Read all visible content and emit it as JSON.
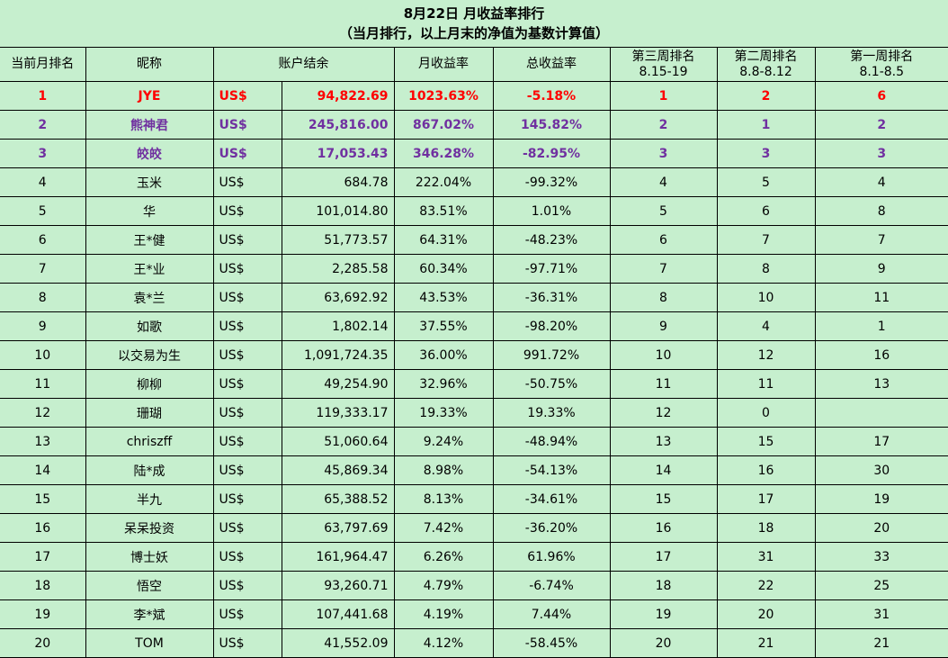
{
  "title": {
    "line1": "8月22日 月收益率排行",
    "line2": "（当月排行，以上月末的净值为基数计算值）"
  },
  "columns": [
    "当前月排名",
    "昵称",
    "账户结余",
    "月收益率",
    "总收益率",
    "第三周排名",
    "第二周排名",
    "第一周排名"
  ],
  "week_ranges": {
    "week3": "8.15-19",
    "week2": "8.8-8.12",
    "week1": "8.1-8.5"
  },
  "currency": "US$",
  "colors": {
    "background": "#c6efce",
    "red": "#ff0000",
    "purple": "#7030a0"
  },
  "rows": [
    {
      "rank": "1",
      "name": "JYE",
      "balance": "94,822.69",
      "monthly": "1023.63%",
      "total": "-5.18%",
      "w3": "1",
      "w2": "2",
      "w1": "6",
      "style": "red"
    },
    {
      "rank": "2",
      "name": "熊神君",
      "balance": "245,816.00",
      "monthly": "867.02%",
      "total": "145.82%",
      "w3": "2",
      "w2": "1",
      "w1": "2",
      "style": "purple"
    },
    {
      "rank": "3",
      "name": "皎皎",
      "balance": "17,053.43",
      "monthly": "346.28%",
      "total": "-82.95%",
      "w3": "3",
      "w2": "3",
      "w1": "3",
      "style": "purple"
    },
    {
      "rank": "4",
      "name": "玉米",
      "balance": "684.78",
      "monthly": "222.04%",
      "total": "-99.32%",
      "w3": "4",
      "w2": "5",
      "w1": "4",
      "style": ""
    },
    {
      "rank": "5",
      "name": "华",
      "balance": "101,014.80",
      "monthly": "83.51%",
      "total": "1.01%",
      "w3": "5",
      "w2": "6",
      "w1": "8",
      "style": ""
    },
    {
      "rank": "6",
      "name": "王*健",
      "balance": "51,773.57",
      "monthly": "64.31%",
      "total": "-48.23%",
      "w3": "6",
      "w2": "7",
      "w1": "7",
      "style": ""
    },
    {
      "rank": "7",
      "name": "王*业",
      "balance": "2,285.58",
      "monthly": "60.34%",
      "total": "-97.71%",
      "w3": "7",
      "w2": "8",
      "w1": "9",
      "style": ""
    },
    {
      "rank": "8",
      "name": "袁*兰",
      "balance": "63,692.92",
      "monthly": "43.53%",
      "total": "-36.31%",
      "w3": "8",
      "w2": "10",
      "w1": "11",
      "style": ""
    },
    {
      "rank": "9",
      "name": "如歌",
      "balance": "1,802.14",
      "monthly": "37.55%",
      "total": "-98.20%",
      "w3": "9",
      "w2": "4",
      "w1": "1",
      "style": ""
    },
    {
      "rank": "10",
      "name": "以交易为生",
      "balance": "1,091,724.35",
      "monthly": "36.00%",
      "total": "991.72%",
      "w3": "10",
      "w2": "12",
      "w1": "16",
      "style": ""
    },
    {
      "rank": "11",
      "name": "柳柳",
      "balance": "49,254.90",
      "monthly": "32.96%",
      "total": "-50.75%",
      "w3": "11",
      "w2": "11",
      "w1": "13",
      "style": ""
    },
    {
      "rank": "12",
      "name": "珊瑚",
      "balance": "119,333.17",
      "monthly": "19.33%",
      "total": "19.33%",
      "w3": "12",
      "w2": "0",
      "w1": "",
      "style": ""
    },
    {
      "rank": "13",
      "name": "chriszff",
      "balance": "51,060.64",
      "monthly": "9.24%",
      "total": "-48.94%",
      "w3": "13",
      "w2": "15",
      "w1": "17",
      "style": ""
    },
    {
      "rank": "14",
      "name": "陆*成",
      "balance": "45,869.34",
      "monthly": "8.98%",
      "total": "-54.13%",
      "w3": "14",
      "w2": "16",
      "w1": "30",
      "style": ""
    },
    {
      "rank": "15",
      "name": "半九",
      "balance": "65,388.52",
      "monthly": "8.13%",
      "total": "-34.61%",
      "w3": "15",
      "w2": "17",
      "w1": "19",
      "style": ""
    },
    {
      "rank": "16",
      "name": "呆呆投资",
      "balance": "63,797.69",
      "monthly": "7.42%",
      "total": "-36.20%",
      "w3": "16",
      "w2": "18",
      "w1": "20",
      "style": ""
    },
    {
      "rank": "17",
      "name": "博士妖",
      "balance": "161,964.47",
      "monthly": "6.26%",
      "total": "61.96%",
      "w3": "17",
      "w2": "31",
      "w1": "33",
      "style": ""
    },
    {
      "rank": "18",
      "name": "悟空",
      "balance": "93,260.71",
      "monthly": "4.79%",
      "total": "-6.74%",
      "w3": "18",
      "w2": "22",
      "w1": "25",
      "style": ""
    },
    {
      "rank": "19",
      "name": "李*斌",
      "balance": "107,441.68",
      "monthly": "4.19%",
      "total": "7.44%",
      "w3": "19",
      "w2": "20",
      "w1": "31",
      "style": ""
    },
    {
      "rank": "20",
      "name": "TOM",
      "balance": "41,552.09",
      "monthly": "4.12%",
      "total": "-58.45%",
      "w3": "20",
      "w2": "21",
      "w1": "21",
      "style": ""
    }
  ]
}
